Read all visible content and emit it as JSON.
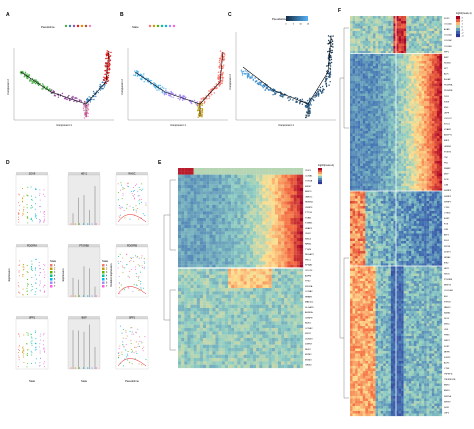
{
  "panels": {
    "A": {
      "label": "A",
      "legend_title": "Pseudotime",
      "xlabel": "Component 1",
      "ylabel": "Component 2",
      "legend_colors": [
        "#4daf4a",
        "#377eb8",
        "#984ea3",
        "#e41a1c",
        "#ff7f00",
        "#a65628",
        "#f781bf"
      ]
    },
    "B": {
      "label": "B",
      "legend_title": "State",
      "xlabel": "Component 1",
      "ylabel": "Component 2",
      "legend_colors": [
        "#f8766d",
        "#c49a00",
        "#53b400",
        "#00c094",
        "#00b6eb",
        "#a58aff",
        "#fb61d7"
      ]
    },
    "C": {
      "label": "C",
      "legend_title": "Pseudotime",
      "legend_ticks": [
        "0",
        "5",
        "10",
        "15"
      ],
      "xlabel": "Component 1",
      "ylabel": "Component 2"
    },
    "D": {
      "label": "D",
      "rows": [
        {
          "left": "SOX9",
          "mid": "HEY1",
          "right": "RHOC"
        },
        {
          "left": "PDGFRA",
          "mid": "PTGRB8",
          "right": "PDGFRB"
        },
        {
          "left": "SPP1",
          "mid": "IBSP",
          "right": "SPP1"
        }
      ],
      "ylabel_left": "Expression",
      "ylabel_mid": "Expression",
      "ylabel_right": "Relative Expression",
      "xlabel_left": "State",
      "xlabel_mid": "State",
      "xlabel_right": "Pseudotime",
      "legend_title": "State",
      "legend_items": [
        "1",
        "2",
        "3",
        "4",
        "5",
        "6",
        "7"
      ],
      "legend_colors": [
        "#f8766d",
        "#c49a00",
        "#53b400",
        "#00c094",
        "#00b6eb",
        "#a58aff",
        "#fb61d7"
      ]
    },
    "E": {
      "label": "E",
      "legend_title": "log10(mean+1)",
      "gene_labels": [
        "CDK1",
        "CCNB1",
        "TOP2A",
        "MKI67",
        "BIRC5",
        "UBE2C",
        "HMGB2",
        "CENPF",
        "PTTG1",
        "TUBB",
        "STMN1",
        "H2AFZ",
        "CKS2",
        "SMC4",
        "RRM2",
        "TYMS",
        "NUSAP1",
        "PRC1",
        "KPNA2",
        "CDC20",
        "ASPM",
        "TPX2",
        "KIF20A",
        "CCNA2",
        "HMMR",
        "MAD2L1",
        "DLGAP5",
        "AURKA",
        "CENPE",
        "BUB1",
        "CCNB2",
        "KIF2C",
        "CDKN3",
        "ZWINT",
        "NUF2",
        "MCM2",
        "MCM3",
        "GINS2"
      ]
    },
    "F": {
      "label": "F",
      "gene_labels": [
        "SOX9",
        "COL2A1",
        "ACAN",
        "COL1A1",
        "COL1A2",
        "COL3A1",
        "SPP1",
        "IBSP",
        "RUNX2",
        "SP7",
        "ALPL",
        "BGLAP",
        "PDGFRA",
        "PDGFRB",
        "THY1",
        "NT5E",
        "ENG",
        "LEPR",
        "CXCL12",
        "KITLG",
        "VCAM1",
        "ANGPT1",
        "EBF3",
        "GREM1",
        "POSTN",
        "TNC",
        "FN1",
        "SPARC",
        "MGP",
        "DCN",
        "LUM",
        "IGFBP3",
        "IGFBP5",
        "IGFBP7",
        "CTGF",
        "CYR61",
        "EGR1",
        "FOS",
        "JUN",
        "ATF3",
        "KLF4",
        "ZFP36",
        "DUSP1",
        "NR4A1",
        "IER2",
        "HEY1",
        "RHOC",
        "PTGRB8",
        "MMP13",
        "COL10A1",
        "IHH",
        "PTH1R",
        "PANX3",
        "SATB2",
        "DLX5",
        "MSX2",
        "OSX",
        "PHEX",
        "DMP1",
        "SOST",
        "MEPE",
        "FGF23",
        "ACP5",
        "CTSK",
        "TNFSF11",
        "TNFRSF11B",
        "BMP2",
        "BMP4",
        "WNT5A",
        "SFRP2",
        "DKK1",
        "LRP5"
      ],
      "legend_title": "log10(mean+1)",
      "legend_ticks": [
        "3",
        "2",
        "1",
        "0",
        "-1",
        "-2",
        "-3"
      ]
    }
  }
}
